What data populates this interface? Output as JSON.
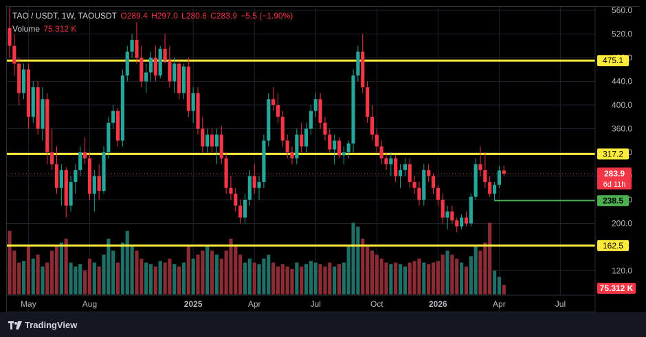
{
  "header": {
    "symbol": "TAO / USDT, 1W, TAOUSDT",
    "open": "O289.4",
    "high": "H297.0",
    "low": "L280.6",
    "close": "C283.9",
    "change": "−5.5 (−1.90%)",
    "volume_label": "Volume",
    "volume_value": "75.312 K"
  },
  "footer": {
    "brand": "TradingView"
  },
  "colors": {
    "up": "#26a69a",
    "down": "#f23645",
    "level": "#ffeb3b",
    "support": "#4caf50"
  },
  "chart_data": {
    "type": "candlestick",
    "y_ticks": [
      120,
      200,
      240,
      280,
      320,
      360,
      400,
      440,
      480,
      520,
      560
    ],
    "y_tick_labels": [
      "120.0",
      "200.0",
      "240.0",
      "280.0",
      "320.0",
      "360.0",
      "400.0",
      "440.0",
      "480.0",
      "520.0",
      "560.0"
    ],
    "x_ticks": [
      {
        "label": "May",
        "week": 4
      },
      {
        "label": "Aug",
        "week": 17
      },
      {
        "label": "2025",
        "week": 39
      },
      {
        "label": "Apr",
        "week": 52
      },
      {
        "label": "Jul",
        "week": 65
      },
      {
        "label": "Oct",
        "week": 78
      },
      {
        "label": "2026",
        "week": 91
      },
      {
        "label": "Apr",
        "week": 104
      },
      {
        "label": "Jul",
        "week": 117
      }
    ],
    "levels": [
      {
        "value": 475.1,
        "label": "475.1",
        "color": "#ffeb3b"
      },
      {
        "value": 317.2,
        "label": "317.2",
        "color": "#ffeb3b"
      },
      {
        "value": 162.5,
        "label": "162.5",
        "color": "#ffeb3b"
      }
    ],
    "support_line": {
      "value": 238.5,
      "label": "238.5",
      "start_week": 103
    },
    "current_price": {
      "value": 283.9,
      "label": "283.9",
      "countdown": "6d 11h"
    },
    "volume_badge": "75.312 K",
    "candles": [
      [
        530,
        575,
        480,
        500,
        80
      ],
      [
        500,
        520,
        450,
        470,
        55
      ],
      [
        470,
        480,
        400,
        420,
        40
      ],
      [
        420,
        470,
        410,
        460,
        42
      ],
      [
        460,
        470,
        360,
        380,
        60
      ],
      [
        380,
        440,
        370,
        430,
        45
      ],
      [
        430,
        440,
        350,
        360,
        50
      ],
      [
        360,
        430,
        340,
        410,
        35
      ],
      [
        410,
        420,
        300,
        320,
        40
      ],
      [
        320,
        360,
        290,
        300,
        55
      ],
      [
        300,
        330,
        250,
        260,
        60
      ],
      [
        260,
        300,
        230,
        290,
        65
      ],
      [
        290,
        295,
        210,
        230,
        70
      ],
      [
        230,
        280,
        220,
        270,
        40
      ],
      [
        270,
        300,
        250,
        290,
        35
      ],
      [
        290,
        330,
        280,
        320,
        38
      ],
      [
        320,
        345,
        300,
        310,
        30
      ],
      [
        310,
        320,
        240,
        250,
        45
      ],
      [
        250,
        290,
        220,
        280,
        40
      ],
      [
        280,
        300,
        240,
        255,
        35
      ],
      [
        255,
        330,
        250,
        320,
        50
      ],
      [
        320,
        380,
        310,
        370,
        70
      ],
      [
        370,
        400,
        360,
        390,
        55
      ],
      [
        390,
        395,
        330,
        340,
        40
      ],
      [
        340,
        460,
        330,
        450,
        65
      ],
      [
        450,
        500,
        440,
        490,
        80
      ],
      [
        490,
        520,
        480,
        510,
        60
      ],
      [
        510,
        540,
        470,
        480,
        55
      ],
      [
        480,
        500,
        430,
        440,
        45
      ],
      [
        440,
        470,
        420,
        455,
        40
      ],
      [
        455,
        490,
        440,
        480,
        38
      ],
      [
        480,
        500,
        440,
        450,
        35
      ],
      [
        450,
        500,
        445,
        495,
        42
      ],
      [
        495,
        520,
        470,
        475,
        40
      ],
      [
        475,
        500,
        430,
        440,
        45
      ],
      [
        440,
        480,
        420,
        470,
        38
      ],
      [
        470,
        475,
        410,
        420,
        35
      ],
      [
        420,
        470,
        410,
        465,
        40
      ],
      [
        465,
        480,
        380,
        390,
        60
      ],
      [
        390,
        430,
        370,
        420,
        45
      ],
      [
        420,
        430,
        350,
        360,
        50
      ],
      [
        360,
        380,
        320,
        330,
        55
      ],
      [
        330,
        360,
        320,
        350,
        60
      ],
      [
        350,
        360,
        320,
        330,
        55
      ],
      [
        330,
        360,
        300,
        350,
        50
      ],
      [
        350,
        365,
        300,
        310,
        45
      ],
      [
        310,
        320,
        250,
        260,
        55
      ],
      [
        260,
        280,
        240,
        250,
        70
      ],
      [
        250,
        260,
        220,
        230,
        60
      ],
      [
        230,
        240,
        200,
        210,
        50
      ],
      [
        210,
        250,
        200,
        240,
        40
      ],
      [
        240,
        290,
        230,
        280,
        45
      ],
      [
        280,
        300,
        250,
        260,
        40
      ],
      [
        260,
        280,
        240,
        270,
        38
      ],
      [
        270,
        350,
        260,
        340,
        45
      ],
      [
        340,
        420,
        330,
        410,
        50
      ],
      [
        410,
        430,
        390,
        400,
        40
      ],
      [
        400,
        420,
        370,
        380,
        35
      ],
      [
        380,
        390,
        330,
        340,
        38
      ],
      [
        340,
        350,
        310,
        320,
        35
      ],
      [
        320,
        330,
        300,
        310,
        32
      ],
      [
        310,
        360,
        300,
        350,
        40
      ],
      [
        350,
        370,
        320,
        330,
        35
      ],
      [
        330,
        370,
        320,
        360,
        38
      ],
      [
        360,
        400,
        350,
        390,
        42
      ],
      [
        390,
        420,
        380,
        410,
        40
      ],
      [
        410,
        420,
        360,
        370,
        38
      ],
      [
        370,
        380,
        340,
        350,
        35
      ],
      [
        350,
        360,
        320,
        325,
        40
      ],
      [
        325,
        350,
        300,
        340,
        35
      ],
      [
        340,
        345,
        310,
        315,
        38
      ],
      [
        315,
        330,
        300,
        320,
        40
      ],
      [
        320,
        340,
        310,
        335,
        60
      ],
      [
        335,
        460,
        320,
        450,
        90
      ],
      [
        450,
        500,
        440,
        490,
        85
      ],
      [
        490,
        520,
        420,
        430,
        70
      ],
      [
        430,
        440,
        370,
        380,
        60
      ],
      [
        380,
        400,
        340,
        350,
        55
      ],
      [
        350,
        360,
        320,
        330,
        50
      ],
      [
        330,
        340,
        300,
        310,
        45
      ],
      [
        310,
        320,
        290,
        300,
        40
      ],
      [
        300,
        320,
        280,
        310,
        38
      ],
      [
        310,
        315,
        270,
        280,
        40
      ],
      [
        280,
        300,
        260,
        290,
        38
      ],
      [
        290,
        310,
        280,
        300,
        35
      ],
      [
        300,
        310,
        260,
        270,
        40
      ],
      [
        270,
        280,
        250,
        260,
        42
      ],
      [
        260,
        270,
        230,
        240,
        45
      ],
      [
        240,
        300,
        230,
        290,
        40
      ],
      [
        290,
        300,
        270,
        280,
        38
      ],
      [
        280,
        285,
        250,
        260,
        40
      ],
      [
        260,
        265,
        230,
        240,
        42
      ],
      [
        240,
        250,
        200,
        210,
        50
      ],
      [
        210,
        230,
        190,
        220,
        55
      ],
      [
        220,
        230,
        200,
        205,
        50
      ],
      [
        205,
        210,
        185,
        195,
        45
      ],
      [
        195,
        215,
        190,
        210,
        40
      ],
      [
        210,
        220,
        195,
        200,
        35
      ],
      [
        200,
        250,
        195,
        245,
        48
      ],
      [
        245,
        310,
        240,
        300,
        60
      ],
      [
        300,
        330,
        280,
        290,
        55
      ],
      [
        290,
        320,
        260,
        270,
        65
      ],
      [
        270,
        280,
        245,
        250,
        90
      ],
      [
        250,
        270,
        238,
        265,
        30
      ],
      [
        265,
        297,
        260,
        289.4,
        22
      ],
      [
        289.4,
        297,
        280.6,
        283.9,
        12
      ]
    ]
  }
}
